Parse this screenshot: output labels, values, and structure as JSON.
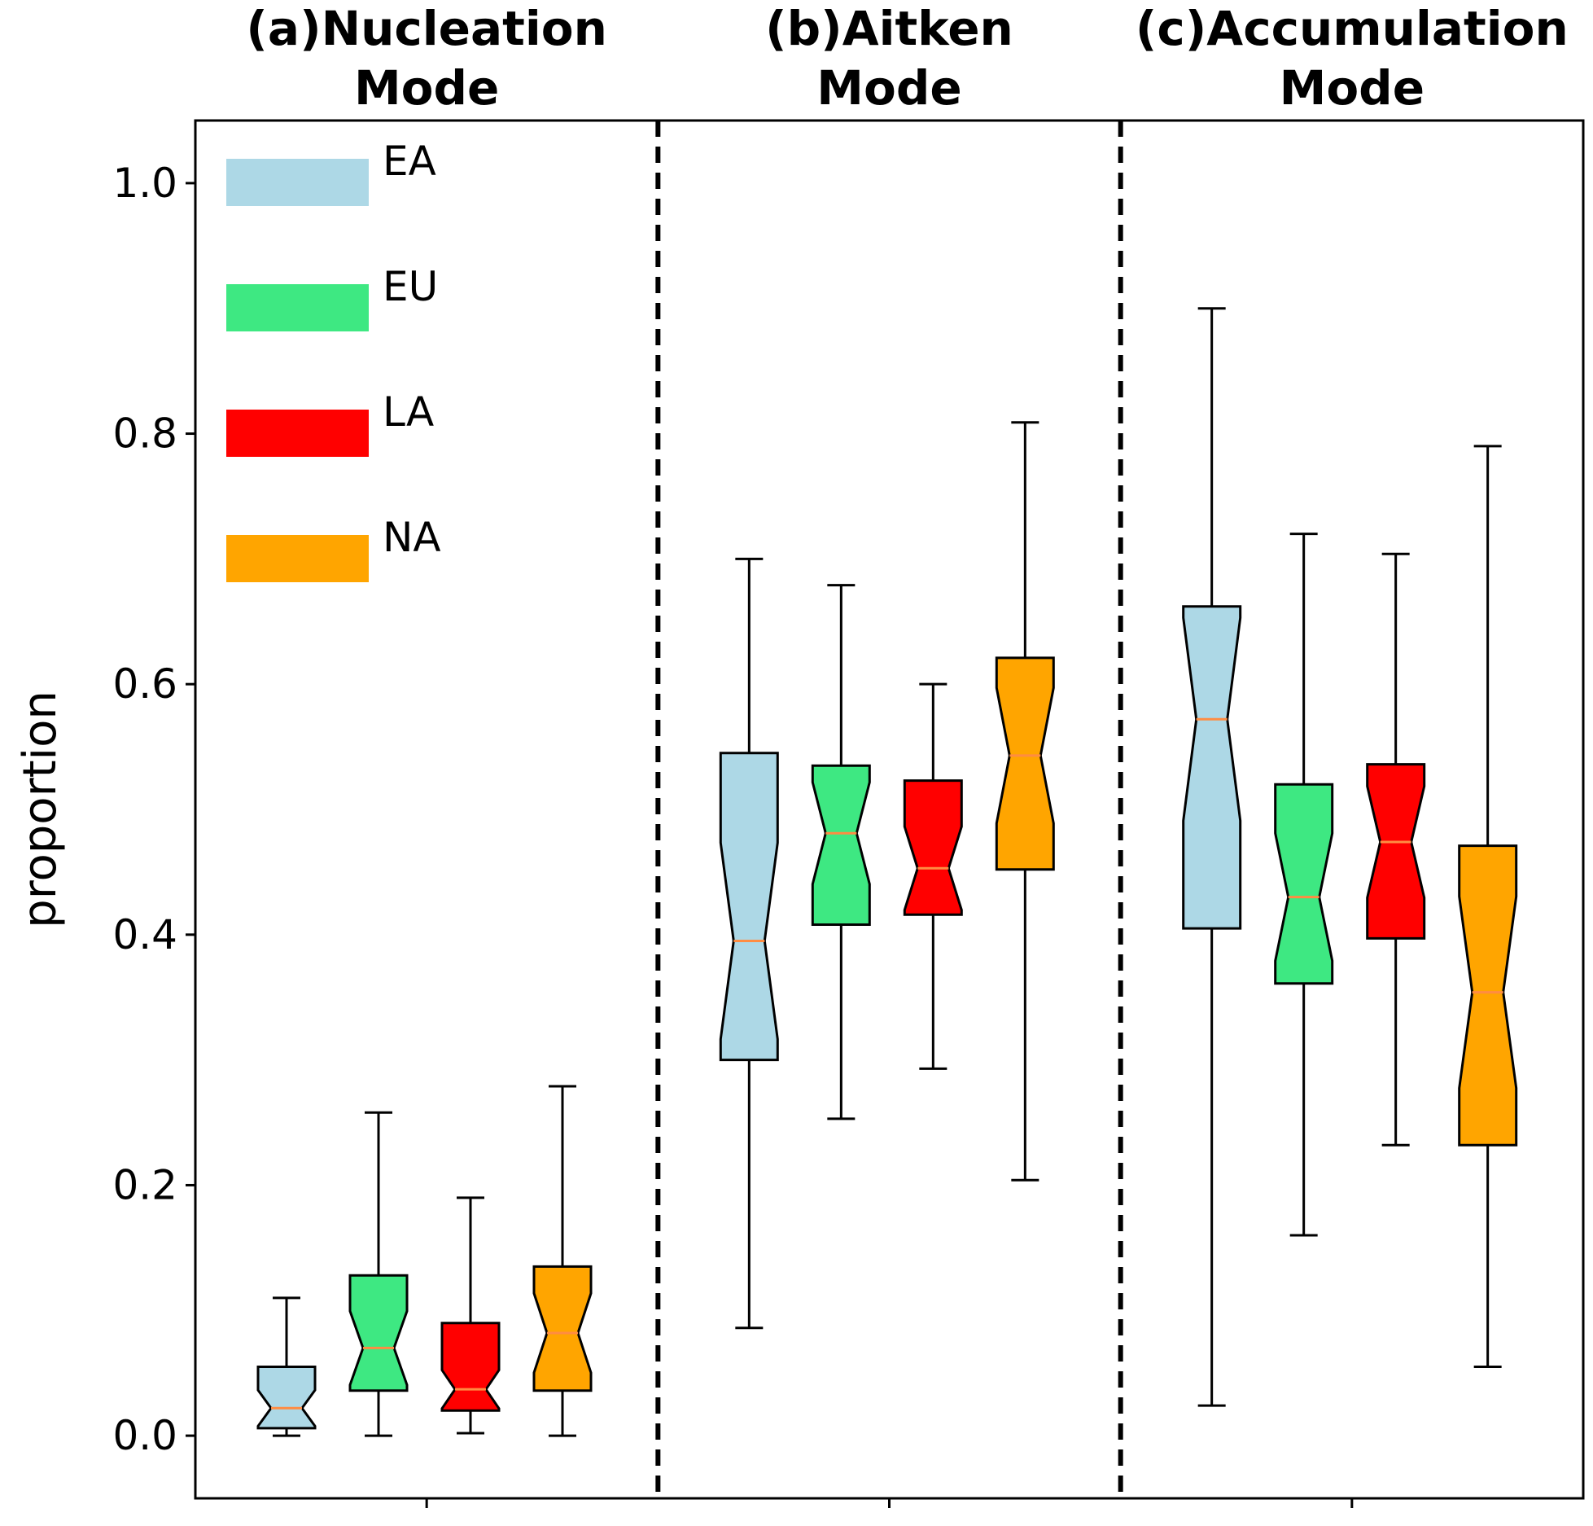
{
  "chart_data": {
    "type": "boxplot",
    "ylabel": "proportion",
    "ylim": [
      -0.05,
      1.05
    ],
    "yticks": [
      "0.0",
      "0.2",
      "0.4",
      "0.6",
      "0.8",
      "1.0"
    ],
    "grid": false,
    "notched": true,
    "legend_position": "top-left",
    "legend": [
      {
        "name": "EA",
        "color": "#add8e6"
      },
      {
        "name": "EU",
        "color": "#3ee882"
      },
      {
        "name": "LA",
        "color": "#ff0000"
      },
      {
        "name": "NA",
        "color": "#ffa500"
      }
    ],
    "median_color": "#ff8c42",
    "panels": [
      {
        "title_line1": "(a)Nucleation",
        "title_line2": "Mode",
        "boxes": [
          {
            "region": "EA",
            "whisker_low": 0.0,
            "q1": 0.006,
            "median": 0.022,
            "q3": 0.055,
            "whisker_high": 0.11
          },
          {
            "region": "EU",
            "whisker_low": 0.0,
            "q1": 0.036,
            "median": 0.07,
            "q3": 0.128,
            "whisker_high": 0.258
          },
          {
            "region": "LA",
            "whisker_low": 0.002,
            "q1": 0.02,
            "median": 0.037,
            "q3": 0.09,
            "whisker_high": 0.19
          },
          {
            "region": "NA",
            "whisker_low": 0.0,
            "q1": 0.036,
            "median": 0.082,
            "q3": 0.135,
            "whisker_high": 0.279
          }
        ]
      },
      {
        "title_line1": "(b)Aitken",
        "title_line2": "Mode",
        "boxes": [
          {
            "region": "EA",
            "whisker_low": 0.086,
            "q1": 0.3,
            "median": 0.395,
            "q3": 0.545,
            "whisker_high": 0.7
          },
          {
            "region": "EU",
            "whisker_low": 0.253,
            "q1": 0.408,
            "median": 0.481,
            "q3": 0.535,
            "whisker_high": 0.679
          },
          {
            "region": "LA",
            "whisker_low": 0.293,
            "q1": 0.416,
            "median": 0.453,
            "q3": 0.523,
            "whisker_high": 0.6
          },
          {
            "region": "NA",
            "whisker_low": 0.204,
            "q1": 0.452,
            "median": 0.543,
            "q3": 0.621,
            "whisker_high": 0.809
          }
        ]
      },
      {
        "title_line1": "(c)Accumulation",
        "title_line2": "Mode",
        "boxes": [
          {
            "region": "EA",
            "whisker_low": 0.024,
            "q1": 0.405,
            "median": 0.572,
            "q3": 0.662,
            "whisker_high": 0.9
          },
          {
            "region": "EU",
            "whisker_low": 0.16,
            "q1": 0.361,
            "median": 0.43,
            "q3": 0.52,
            "whisker_high": 0.72
          },
          {
            "region": "LA",
            "whisker_low": 0.232,
            "q1": 0.397,
            "median": 0.474,
            "q3": 0.536,
            "whisker_high": 0.704
          },
          {
            "region": "NA",
            "whisker_low": 0.055,
            "q1": 0.232,
            "median": 0.354,
            "q3": 0.471,
            "whisker_high": 0.79
          }
        ]
      }
    ]
  }
}
